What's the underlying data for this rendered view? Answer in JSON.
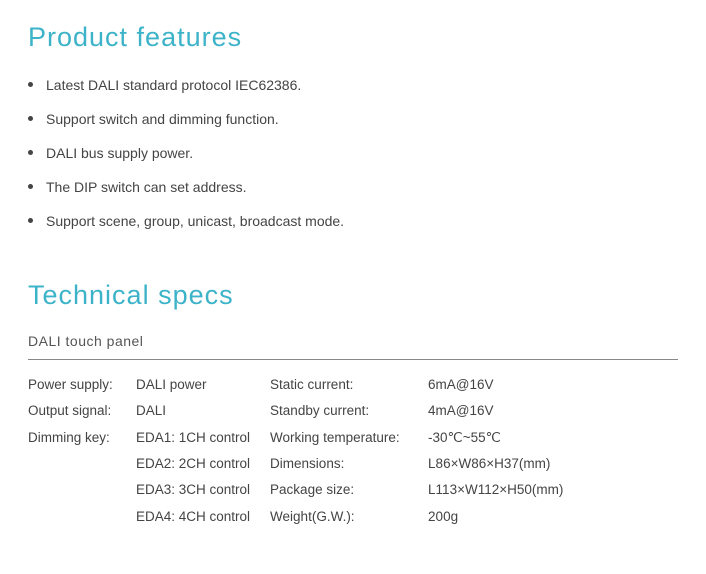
{
  "headings": {
    "features": "Product features",
    "specs": "Technical specs"
  },
  "heading_color": "#3db3c9",
  "text_color": "#444444",
  "features": [
    "Latest DALI standard protocol IEC62386.",
    "Support switch and dimming function.",
    "DALI bus supply power.",
    "The DIP switch can set address.",
    "Support scene, group, unicast, broadcast mode."
  ],
  "specs": {
    "subtitle": "DALI touch panel",
    "left": {
      "labels": [
        "Power supply:",
        "Output signal:",
        "Dimming key:",
        "",
        "",
        ""
      ],
      "values": [
        "DALI power",
        "DALI",
        "EDA1: 1CH control",
        "EDA2: 2CH control",
        "EDA3: 3CH control",
        "EDA4: 4CH control"
      ]
    },
    "right": {
      "labels": [
        "Static current:",
        "Standby current:",
        "Working temperature:",
        "Dimensions:",
        "Package size:",
        "Weight(G.W.):"
      ],
      "values": [
        "6mA@16V",
        "4mA@16V",
        "-30℃~55℃",
        "L86×W86×H37(mm)",
        "L113×W112×H50(mm)",
        "200g"
      ]
    }
  }
}
